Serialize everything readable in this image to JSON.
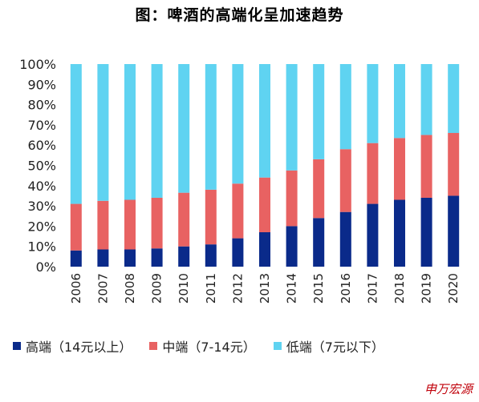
{
  "title": "图：啤酒的高端化呈加速趋势",
  "watermark": "申万宏源",
  "chart_data": {
    "type": "bar",
    "stacked": true,
    "categories": [
      "2006",
      "2007",
      "2008",
      "2009",
      "2010",
      "2011",
      "2012",
      "2013",
      "2014",
      "2015",
      "2016",
      "2017",
      "2018",
      "2019",
      "2020"
    ],
    "series": [
      {
        "name": "高端（14元以上）",
        "color": "#0a2a8a",
        "values": [
          8,
          8.5,
          8.5,
          9,
          10,
          11,
          14,
          17,
          20,
          24,
          27,
          31,
          33,
          34,
          35
        ]
      },
      {
        "name": "中端（7-14元）",
        "color": "#e86262",
        "values": [
          23,
          24,
          24.5,
          25,
          26.5,
          27,
          27,
          27,
          27.5,
          29,
          31,
          30,
          30.5,
          31,
          31
        ]
      },
      {
        "name": "低端（7元以下）",
        "color": "#5fd3f1",
        "values": [
          69,
          67.5,
          67,
          66,
          63.5,
          62,
          59,
          56,
          52.5,
          47,
          42,
          39,
          36.5,
          35,
          34
        ]
      }
    ],
    "yticks": [
      "0%",
      "10%",
      "20%",
      "30%",
      "40%",
      "50%",
      "60%",
      "70%",
      "80%",
      "90%",
      "100%"
    ],
    "ylim": [
      0,
      100
    ],
    "legend_position": "bottom",
    "grid": false
  }
}
